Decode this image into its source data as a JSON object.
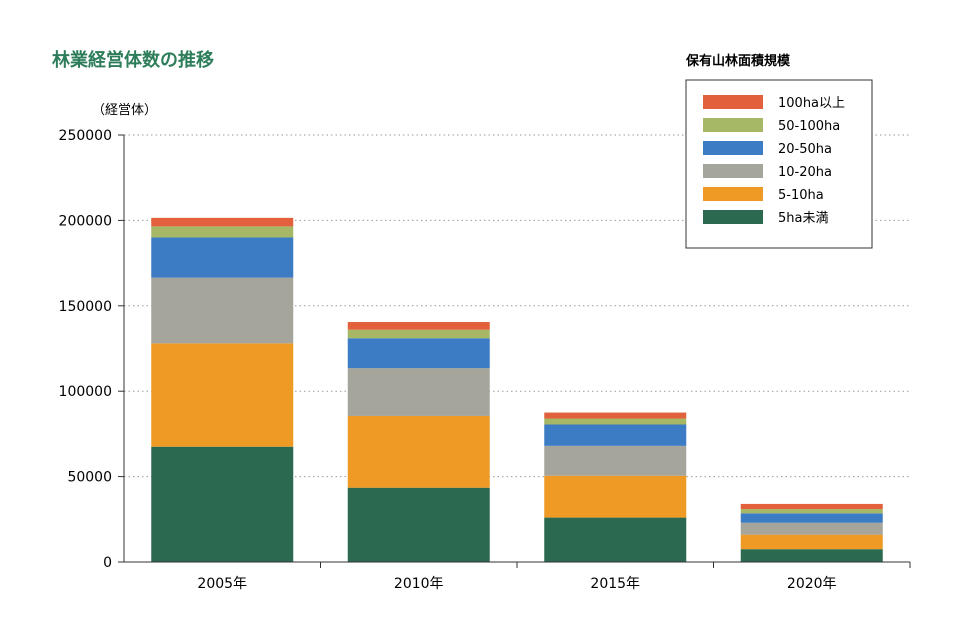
{
  "title": "林業経営体数の推移",
  "y_unit_label": "（経営体）",
  "legend_title": "保有山林面積規模",
  "colors": {
    "title": "#2e7d5a",
    "5ha未満": "#2b6a50",
    "5-10ha": "#ee9a25",
    "10-20ha": "#a6a59c",
    "20-50ha": "#3b7cc4",
    "50-100ha": "#a6b865",
    "100ha以上": "#e2613c",
    "axis": "#333333",
    "grid": "#9a9a9a"
  },
  "chart_data": {
    "type": "bar",
    "stacked": true,
    "title": "林業経営体数の推移",
    "ylabel": "（経営体）",
    "xlabel": "",
    "categories": [
      "2005年",
      "2010年",
      "2015年",
      "2020年"
    ],
    "ylim": [
      0,
      250000
    ],
    "yticks": [
      0,
      50000,
      100000,
      150000,
      200000,
      250000
    ],
    "ytick_labels": [
      "0",
      "50000",
      "100000",
      "150000",
      "200000",
      "250000"
    ],
    "grid": "horizontal-dotted",
    "legend_position": "top-right",
    "legend_title": "保有山林面積規模",
    "series": [
      {
        "name": "5ha未満",
        "values": [
          67500,
          43500,
          26000,
          7500
        ]
      },
      {
        "name": "5-10ha",
        "values": [
          60500,
          42000,
          24500,
          8500
        ]
      },
      {
        "name": "10-20ha",
        "values": [
          38500,
          28000,
          17500,
          7000
        ]
      },
      {
        "name": "20-50ha",
        "values": [
          23500,
          17500,
          12500,
          5500
        ]
      },
      {
        "name": "50-100ha",
        "values": [
          6500,
          5000,
          3500,
          2500
        ]
      },
      {
        "name": "100ha以上",
        "values": [
          5000,
          4500,
          3500,
          3000
        ]
      }
    ]
  }
}
